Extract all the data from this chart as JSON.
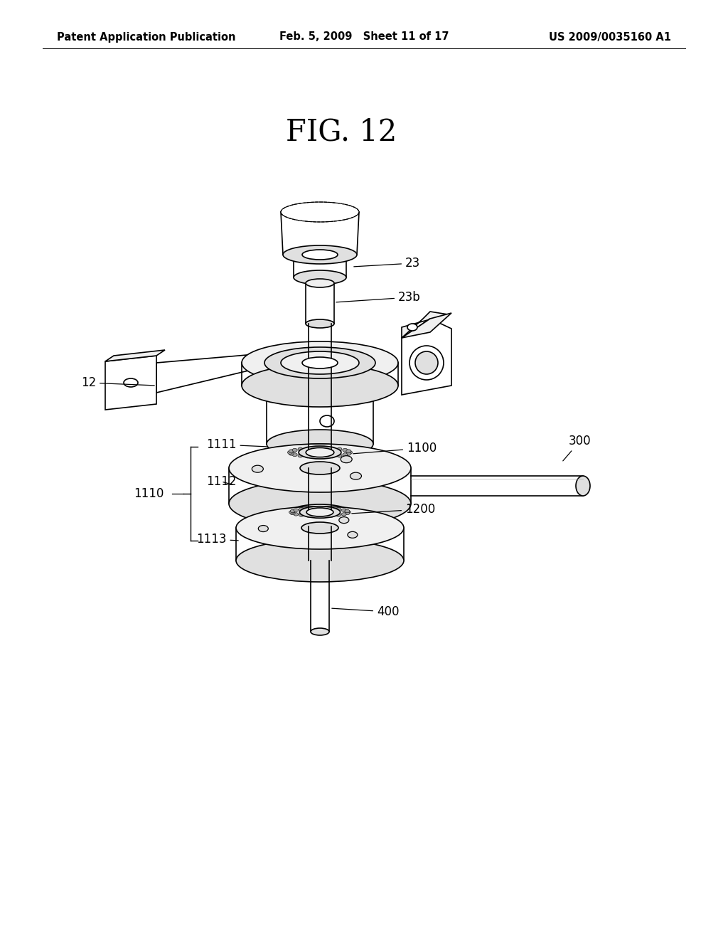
{
  "background_color": "#ffffff",
  "header_left": "Patent Application Publication",
  "header_mid": "Feb. 5, 2009   Sheet 11 of 17",
  "header_right": "US 2009/0035160 A1",
  "fig_label": "FIG. 12",
  "header_fontsize": 10.5,
  "fig_label_fontsize": 30,
  "line_color": "#000000",
  "face_light": "#f0f0f0",
  "face_mid": "#e0e0e0",
  "face_dark": "#c8c8c8"
}
